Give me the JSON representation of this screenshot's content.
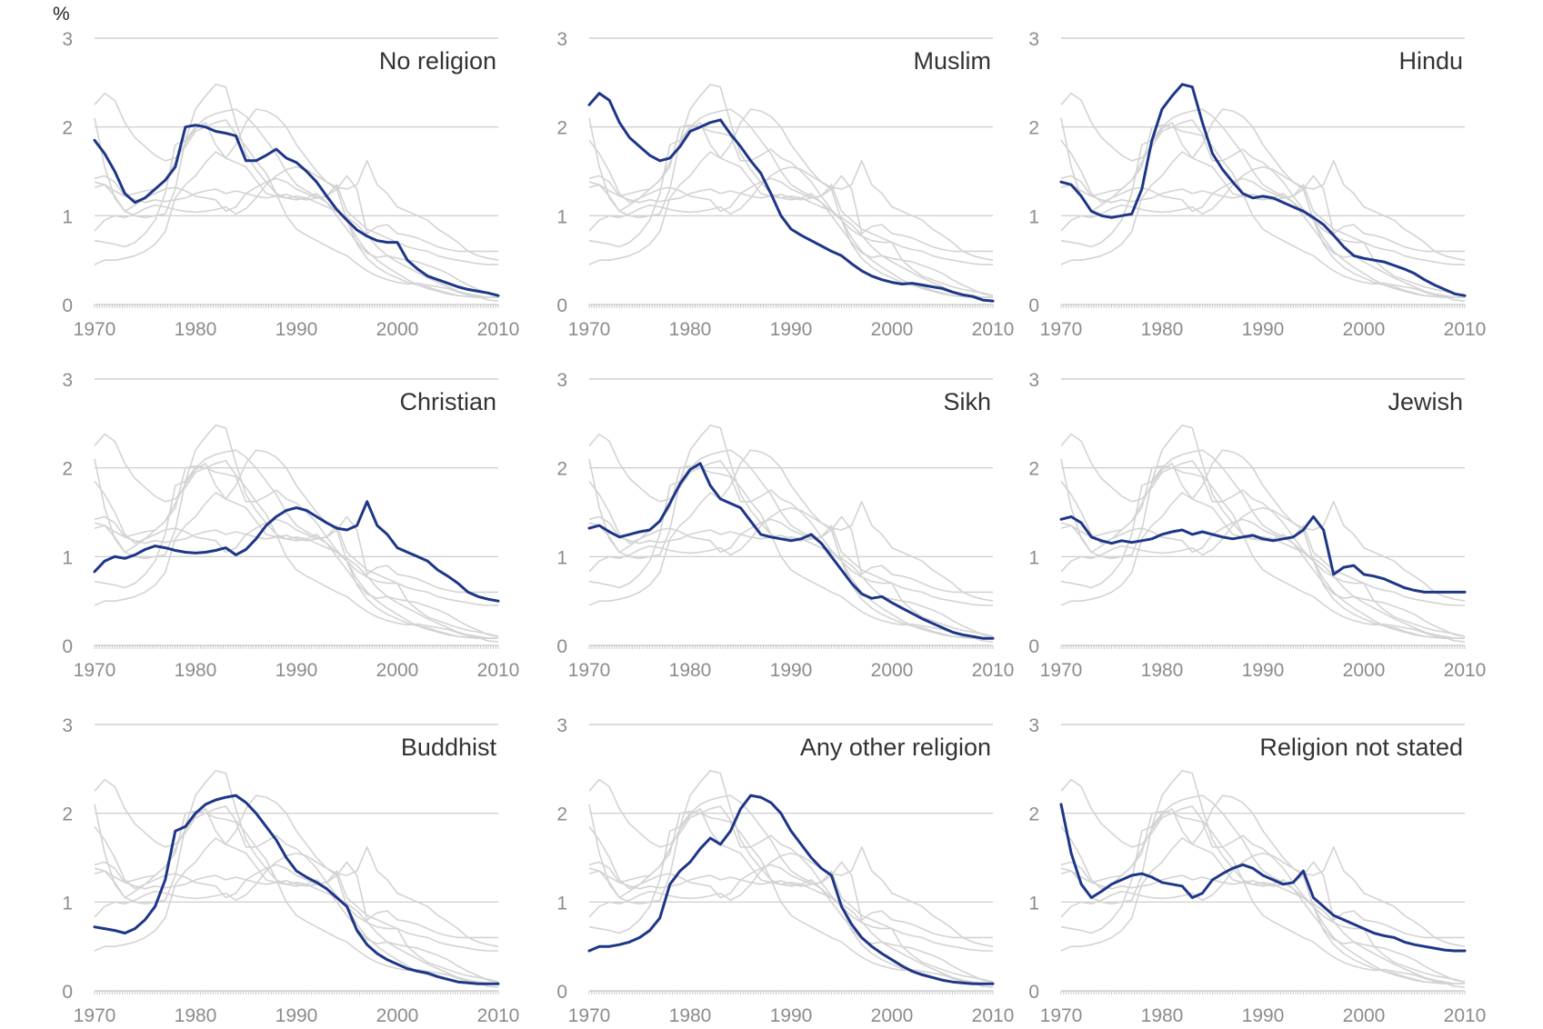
{
  "unit_label": "%",
  "colors": {
    "highlight": "#1d3688",
    "context": "#d3d3d3",
    "grid": "#c8c8c8",
    "tick_text": "#8c8c8c",
    "title_text": "#333333"
  },
  "chart_data": [
    {
      "type": "line",
      "title": "No religion",
      "x": [
        1970,
        1971,
        1972,
        1973,
        1974,
        1975,
        1976,
        1977,
        1978,
        1979,
        1980,
        1981,
        1982,
        1983,
        1984,
        1985,
        1986,
        1987,
        1988,
        1989,
        1990,
        1991,
        1992,
        1993,
        1994,
        1995,
        1996,
        1997,
        1998,
        1999,
        2000,
        2001,
        2002,
        2003,
        2004,
        2005,
        2006,
        2007,
        2008,
        2009,
        2010
      ],
      "series": [
        {
          "values": [
            1.85,
            1.7,
            1.5,
            1.25,
            1.15,
            1.2,
            1.3,
            1.4,
            1.55,
            2.0,
            2.02,
            2.0,
            1.95,
            1.93,
            1.9,
            1.62,
            1.62,
            1.68,
            1.75,
            1.65,
            1.6,
            1.5,
            1.38,
            1.22,
            1.07,
            0.95,
            0.84,
            0.77,
            0.72,
            0.7,
            0.7,
            0.5,
            0.4,
            0.32,
            0.28,
            0.24,
            0.2,
            0.17,
            0.15,
            0.13,
            0.1
          ]
        }
      ],
      "ylim": [
        0,
        3
      ],
      "yticks": [
        0,
        1,
        2,
        3
      ],
      "xticks": [
        1970,
        1980,
        1990,
        2000,
        2010
      ]
    },
    {
      "type": "line",
      "title": "Muslim",
      "x": [
        1970,
        1971,
        1972,
        1973,
        1974,
        1975,
        1976,
        1977,
        1978,
        1979,
        1980,
        1981,
        1982,
        1983,
        1984,
        1985,
        1986,
        1987,
        1988,
        1989,
        1990,
        1991,
        1992,
        1993,
        1994,
        1995,
        1996,
        1997,
        1998,
        1999,
        2000,
        2001,
        2002,
        2003,
        2004,
        2005,
        2006,
        2007,
        2008,
        2009,
        2010
      ],
      "series": [
        {
          "values": [
            2.25,
            2.38,
            2.3,
            2.05,
            1.88,
            1.78,
            1.68,
            1.62,
            1.65,
            1.78,
            1.95,
            2.0,
            2.05,
            2.08,
            1.92,
            1.78,
            1.62,
            1.48,
            1.25,
            1.0,
            0.85,
            0.78,
            0.72,
            0.66,
            0.6,
            0.55,
            0.46,
            0.38,
            0.32,
            0.28,
            0.25,
            0.23,
            0.24,
            0.22,
            0.2,
            0.18,
            0.14,
            0.11,
            0.09,
            0.05,
            0.04
          ]
        }
      ],
      "ylim": [
        0,
        3
      ],
      "yticks": [
        0,
        1,
        2,
        3
      ],
      "xticks": [
        1970,
        1980,
        1990,
        2000,
        2010
      ]
    },
    {
      "type": "line",
      "title": "Hindu",
      "x": [
        1970,
        1971,
        1972,
        1973,
        1974,
        1975,
        1976,
        1977,
        1978,
        1979,
        1980,
        1981,
        1982,
        1983,
        1984,
        1985,
        1986,
        1987,
        1988,
        1989,
        1990,
        1991,
        1992,
        1993,
        1994,
        1995,
        1996,
        1997,
        1998,
        1999,
        2000,
        2001,
        2002,
        2003,
        2004,
        2005,
        2006,
        2007,
        2008,
        2009,
        2010
      ],
      "series": [
        {
          "values": [
            1.38,
            1.35,
            1.22,
            1.05,
            1.0,
            0.98,
            1.0,
            1.02,
            1.3,
            1.85,
            2.2,
            2.35,
            2.48,
            2.45,
            2.05,
            1.7,
            1.52,
            1.38,
            1.25,
            1.2,
            1.22,
            1.2,
            1.15,
            1.1,
            1.05,
            0.98,
            0.9,
            0.78,
            0.65,
            0.55,
            0.52,
            0.5,
            0.48,
            0.44,
            0.4,
            0.35,
            0.28,
            0.22,
            0.17,
            0.12,
            0.1
          ]
        }
      ],
      "ylim": [
        0,
        3
      ],
      "yticks": [
        0,
        1,
        2,
        3
      ],
      "xticks": [
        1970,
        1980,
        1990,
        2000,
        2010
      ]
    },
    {
      "type": "line",
      "title": "Christian",
      "x": [
        1970,
        1971,
        1972,
        1973,
        1974,
        1975,
        1976,
        1977,
        1978,
        1979,
        1980,
        1981,
        1982,
        1983,
        1984,
        1985,
        1986,
        1987,
        1988,
        1989,
        1990,
        1991,
        1992,
        1993,
        1994,
        1995,
        1996,
        1997,
        1998,
        1999,
        2000,
        2001,
        2002,
        2003,
        2004,
        2005,
        2006,
        2007,
        2008,
        2009,
        2010
      ],
      "series": [
        {
          "values": [
            0.83,
            0.95,
            1.0,
            0.98,
            1.02,
            1.08,
            1.12,
            1.1,
            1.07,
            1.05,
            1.04,
            1.05,
            1.07,
            1.1,
            1.02,
            1.08,
            1.2,
            1.35,
            1.45,
            1.52,
            1.55,
            1.52,
            1.45,
            1.38,
            1.32,
            1.3,
            1.35,
            1.62,
            1.35,
            1.25,
            1.1,
            1.05,
            1.0,
            0.95,
            0.85,
            0.78,
            0.7,
            0.6,
            0.55,
            0.52,
            0.5
          ]
        }
      ],
      "ylim": [
        0,
        3
      ],
      "yticks": [
        0,
        1,
        2,
        3
      ],
      "xticks": [
        1970,
        1980,
        1990,
        2000,
        2010
      ]
    },
    {
      "type": "line",
      "title": "Sikh",
      "x": [
        1970,
        1971,
        1972,
        1973,
        1974,
        1975,
        1976,
        1977,
        1978,
        1979,
        1980,
        1981,
        1982,
        1983,
        1984,
        1985,
        1986,
        1987,
        1988,
        1989,
        1990,
        1991,
        1992,
        1993,
        1994,
        1995,
        1996,
        1997,
        1998,
        1999,
        2000,
        2001,
        2002,
        2003,
        2004,
        2005,
        2006,
        2007,
        2008,
        2009,
        2010
      ],
      "series": [
        {
          "values": [
            1.32,
            1.35,
            1.28,
            1.22,
            1.25,
            1.28,
            1.3,
            1.4,
            1.6,
            1.82,
            1.98,
            2.05,
            1.8,
            1.65,
            1.6,
            1.55,
            1.4,
            1.25,
            1.22,
            1.2,
            1.18,
            1.2,
            1.25,
            1.15,
            1.0,
            0.85,
            0.7,
            0.58,
            0.53,
            0.55,
            0.48,
            0.42,
            0.36,
            0.3,
            0.25,
            0.2,
            0.15,
            0.12,
            0.1,
            0.08,
            0.08
          ]
        }
      ],
      "ylim": [
        0,
        3
      ],
      "yticks": [
        0,
        1,
        2,
        3
      ],
      "xticks": [
        1970,
        1980,
        1990,
        2000,
        2010
      ]
    },
    {
      "type": "line",
      "title": "Jewish",
      "x": [
        1970,
        1971,
        1972,
        1973,
        1974,
        1975,
        1976,
        1977,
        1978,
        1979,
        1980,
        1981,
        1982,
        1983,
        1984,
        1985,
        1986,
        1987,
        1988,
        1989,
        1990,
        1991,
        1992,
        1993,
        1994,
        1995,
        1996,
        1997,
        1998,
        1999,
        2000,
        2001,
        2002,
        2003,
        2004,
        2005,
        2006,
        2007,
        2008,
        2009,
        2010
      ],
      "series": [
        {
          "values": [
            1.42,
            1.45,
            1.38,
            1.22,
            1.18,
            1.15,
            1.18,
            1.16,
            1.18,
            1.2,
            1.25,
            1.28,
            1.3,
            1.25,
            1.28,
            1.25,
            1.22,
            1.2,
            1.22,
            1.24,
            1.2,
            1.18,
            1.2,
            1.22,
            1.3,
            1.45,
            1.3,
            0.8,
            0.88,
            0.9,
            0.8,
            0.78,
            0.75,
            0.7,
            0.65,
            0.62,
            0.6,
            0.6,
            0.6,
            0.6,
            0.6
          ]
        }
      ],
      "ylim": [
        0,
        3
      ],
      "yticks": [
        0,
        1,
        2,
        3
      ],
      "xticks": [
        1970,
        1980,
        1990,
        2000,
        2010
      ]
    },
    {
      "type": "line",
      "title": "Buddhist",
      "x": [
        1970,
        1971,
        1972,
        1973,
        1974,
        1975,
        1976,
        1977,
        1978,
        1979,
        1980,
        1981,
        1982,
        1983,
        1984,
        1985,
        1986,
        1987,
        1988,
        1989,
        1990,
        1991,
        1992,
        1993,
        1994,
        1995,
        1996,
        1997,
        1998,
        1999,
        2000,
        2001,
        2002,
        2003,
        2004,
        2005,
        2006,
        2007,
        2008,
        2009,
        2010
      ],
      "series": [
        {
          "values": [
            0.72,
            0.7,
            0.68,
            0.65,
            0.7,
            0.8,
            0.95,
            1.25,
            1.8,
            1.85,
            2.0,
            2.1,
            2.15,
            2.18,
            2.2,
            2.12,
            2.0,
            1.85,
            1.7,
            1.5,
            1.35,
            1.28,
            1.22,
            1.15,
            1.05,
            0.95,
            0.68,
            0.52,
            0.42,
            0.35,
            0.3,
            0.25,
            0.22,
            0.2,
            0.16,
            0.13,
            0.1,
            0.09,
            0.08,
            0.08,
            0.08
          ]
        }
      ],
      "ylim": [
        0,
        3
      ],
      "yticks": [
        0,
        1,
        2,
        3
      ],
      "xticks": [
        1970,
        1980,
        1990,
        2000,
        2010
      ]
    },
    {
      "type": "line",
      "title": "Any other religion",
      "x": [
        1970,
        1971,
        1972,
        1973,
        1974,
        1975,
        1976,
        1977,
        1978,
        1979,
        1980,
        1981,
        1982,
        1983,
        1984,
        1985,
        1986,
        1987,
        1988,
        1989,
        1990,
        1991,
        1992,
        1993,
        1994,
        1995,
        1996,
        1997,
        1998,
        1999,
        2000,
        2001,
        2002,
        2003,
        2004,
        2005,
        2006,
        2007,
        2008,
        2009,
        2010
      ],
      "series": [
        {
          "values": [
            0.45,
            0.5,
            0.5,
            0.52,
            0.55,
            0.6,
            0.68,
            0.82,
            1.2,
            1.35,
            1.45,
            1.6,
            1.72,
            1.65,
            1.8,
            2.05,
            2.2,
            2.18,
            2.12,
            2.0,
            1.8,
            1.65,
            1.5,
            1.38,
            1.3,
            0.95,
            0.75,
            0.6,
            0.5,
            0.42,
            0.35,
            0.28,
            0.22,
            0.18,
            0.15,
            0.12,
            0.1,
            0.09,
            0.08,
            0.08,
            0.08
          ]
        }
      ],
      "ylim": [
        0,
        3
      ],
      "yticks": [
        0,
        1,
        2,
        3
      ],
      "xticks": [
        1970,
        1980,
        1990,
        2000,
        2010
      ]
    },
    {
      "type": "line",
      "title": "Religion not stated",
      "x": [
        1970,
        1971,
        1972,
        1973,
        1974,
        1975,
        1976,
        1977,
        1978,
        1979,
        1980,
        1981,
        1982,
        1983,
        1984,
        1985,
        1986,
        1987,
        1988,
        1989,
        1990,
        1991,
        1992,
        1993,
        1994,
        1995,
        1996,
        1997,
        1998,
        1999,
        2000,
        2001,
        2002,
        2003,
        2004,
        2005,
        2006,
        2007,
        2008,
        2009,
        2010
      ],
      "series": [
        {
          "values": [
            2.1,
            1.55,
            1.2,
            1.05,
            1.12,
            1.2,
            1.25,
            1.3,
            1.32,
            1.28,
            1.22,
            1.2,
            1.18,
            1.05,
            1.1,
            1.25,
            1.32,
            1.38,
            1.42,
            1.38,
            1.3,
            1.25,
            1.2,
            1.22,
            1.35,
            1.05,
            0.95,
            0.85,
            0.8,
            0.75,
            0.7,
            0.65,
            0.62,
            0.6,
            0.55,
            0.52,
            0.5,
            0.48,
            0.46,
            0.45,
            0.45
          ]
        }
      ],
      "ylim": [
        0,
        3
      ],
      "yticks": [
        0,
        1,
        2,
        3
      ],
      "xticks": [
        1970,
        1980,
        1990,
        2000,
        2010
      ]
    }
  ]
}
